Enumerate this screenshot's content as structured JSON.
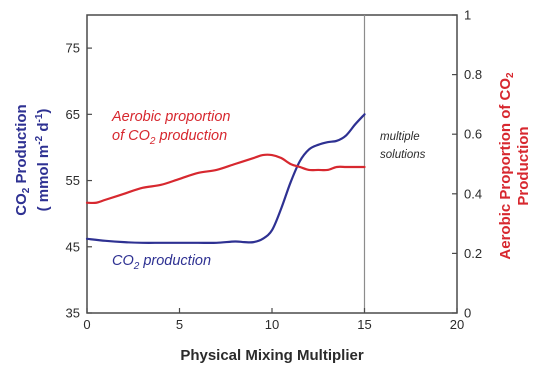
{
  "chart_data": {
    "type": "line",
    "x": {
      "label": "Physical Mixing Multiplier",
      "range": [
        0,
        20
      ],
      "ticks": [
        "0",
        "5",
        "10",
        "15",
        "20"
      ]
    },
    "y_left": {
      "label_line1_main": "CO",
      "label_line1_sub": "2",
      "label_line1_rest": " Production",
      "label_line2_open": "( mmol m",
      "label_line2_exp1": "-2",
      "label_line2_mid": " d",
      "label_line2_exp2": "-1",
      "label_line2_close": ")",
      "range": [
        35,
        80
      ],
      "ticks": [
        "35",
        "45",
        "55",
        "65",
        "75"
      ],
      "color": "#2e3192"
    },
    "y_right": {
      "label_line1_main": "Aerobic Proportion of CO",
      "label_line1_sub": "2",
      "label_line2": "Production",
      "range": [
        0,
        1
      ],
      "ticks": [
        "0",
        "0.2",
        "0.4",
        "0.6",
        "0.8",
        "1"
      ],
      "color": "#d7282f"
    },
    "vline_x": 15,
    "series": [
      {
        "axis": "left",
        "color": "#2e3192",
        "x": [
          0,
          1,
          2,
          3,
          4,
          5,
          6,
          7,
          8,
          8.5,
          9,
          9.5,
          10,
          10.5,
          11,
          11.5,
          12,
          12.5,
          13,
          13.5,
          14,
          14.5,
          15
        ],
        "y": [
          46.2,
          45.9,
          45.7,
          45.6,
          45.6,
          45.6,
          45.6,
          45.6,
          45.8,
          45.7,
          45.7,
          46.2,
          47.5,
          50.8,
          54.7,
          57.9,
          59.7,
          60.4,
          60.8,
          61.0,
          61.8,
          63.5,
          65
        ]
      },
      {
        "axis": "right",
        "color": "#d7282f",
        "x": [
          0,
          0.5,
          1,
          2,
          3,
          4,
          5,
          6,
          7,
          8,
          9,
          9.5,
          10,
          10.5,
          11,
          11.5,
          12,
          12.5,
          13,
          13.5,
          14,
          14.5,
          15
        ],
        "y": [
          0.37,
          0.37,
          0.38,
          0.4,
          0.42,
          0.43,
          0.45,
          0.47,
          0.48,
          0.5,
          0.52,
          0.53,
          0.53,
          0.52,
          0.5,
          0.49,
          0.48,
          0.48,
          0.48,
          0.49,
          0.49,
          0.49,
          0.49
        ]
      }
    ],
    "annotations": {
      "aerobic_line1": "Aerobic proportion",
      "aerobic_line2_main": "of CO",
      "aerobic_line2_sub": "2",
      "aerobic_line2_rest": " production",
      "co2_main": "CO",
      "co2_sub": "2",
      "co2_rest": " production",
      "multiple_line1": "multiple",
      "multiple_line2": "solutions"
    }
  }
}
